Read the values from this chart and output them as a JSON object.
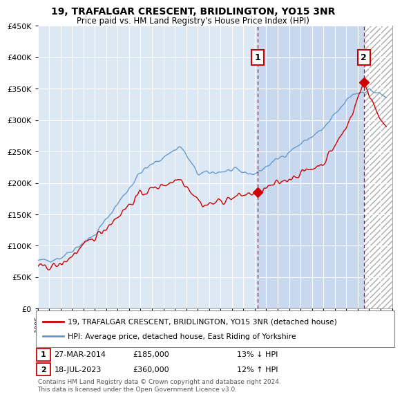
{
  "title": "19, TRAFALGAR CRESCENT, BRIDLINGTON, YO15 3NR",
  "subtitle": "Price paid vs. HM Land Registry's House Price Index (HPI)",
  "legend_line1": "19, TRAFALGAR CRESCENT, BRIDLINGTON, YO15 3NR (detached house)",
  "legend_line2": "HPI: Average price, detached house, East Riding of Yorkshire",
  "annotation1_label": "1",
  "annotation1_date": "27-MAR-2014",
  "annotation1_price": "£185,000",
  "annotation1_hpi": "13% ↓ HPI",
  "annotation1_year": 2014.23,
  "annotation1_value": 185000,
  "annotation2_label": "2",
  "annotation2_date": "18-JUL-2023",
  "annotation2_price": "£360,000",
  "annotation2_hpi": "12% ↑ HPI",
  "annotation2_year": 2023.54,
  "annotation2_value": 360000,
  "footer": "Contains HM Land Registry data © Crown copyright and database right 2024.\nThis data is licensed under the Open Government Licence v3.0.",
  "hpi_color": "#6699cc",
  "price_color": "#cc0000",
  "vline_color": "#cc0000",
  "background_color": "#ffffff",
  "plot_bg_color": "#dde8f5",
  "grid_color": "#ffffff",
  "shade_color": "#c8d8ee",
  "ylim": [
    0,
    450000
  ],
  "xlim_start": 1995,
  "xlim_end": 2026
}
